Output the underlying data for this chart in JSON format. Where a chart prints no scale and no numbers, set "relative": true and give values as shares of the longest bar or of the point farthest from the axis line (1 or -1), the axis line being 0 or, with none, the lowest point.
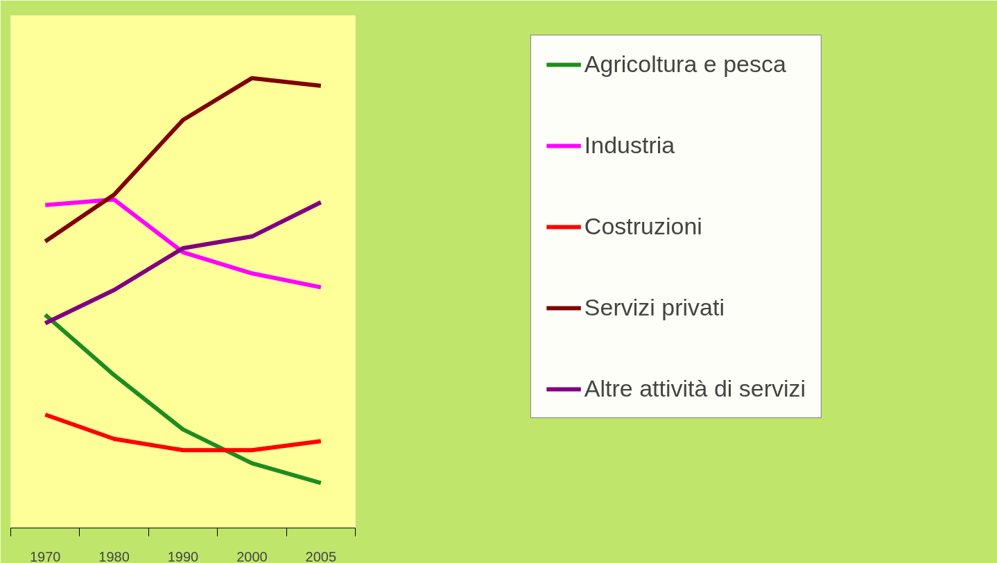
{
  "chart_data": {
    "type": "line",
    "relative": true,
    "categories": [
      "1970",
      "1980",
      "1990",
      "2000",
      "2005"
    ],
    "series": [
      {
        "name": "Agricoltura e pesca",
        "color": "#1e8c1e",
        "values": [
          0.474,
          0.34,
          0.219,
          0.144,
          0.1
        ]
      },
      {
        "name": "Industria",
        "color": "#ff00ff",
        "values": [
          0.718,
          0.73,
          0.613,
          0.566,
          0.535
        ]
      },
      {
        "name": "Costruzioni",
        "color": "#ff0000",
        "values": [
          0.252,
          0.198,
          0.173,
          0.173,
          0.193
        ]
      },
      {
        "name": "Servizi privati",
        "color": "#800000",
        "values": [
          0.637,
          0.741,
          0.907,
          1.0,
          0.983
        ]
      },
      {
        "name": "Altre attività di servizi",
        "color": "#800080",
        "values": [
          0.455,
          0.529,
          0.622,
          0.648,
          0.724
        ]
      }
    ],
    "legend": "right",
    "grid": false,
    "marker": "none",
    "line_style": "solid"
  }
}
